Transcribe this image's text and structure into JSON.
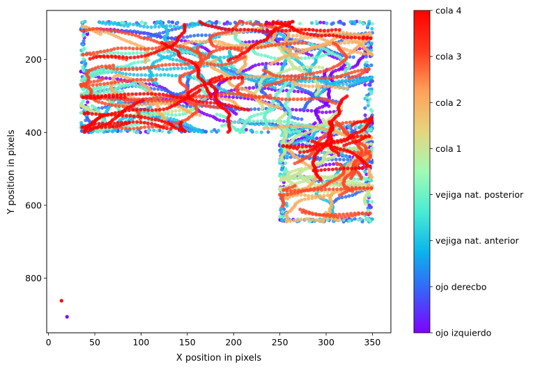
{
  "chart_data": {
    "type": "scatter",
    "xlabel": "X position in pixels",
    "ylabel": "Y position in pixels",
    "xlim": [
      -2,
      370
    ],
    "ylim": [
      950,
      65
    ],
    "y_inverted": true,
    "x_ticks": [
      0,
      50,
      100,
      150,
      200,
      250,
      300,
      350
    ],
    "y_ticks": [
      200,
      400,
      600,
      800
    ],
    "grid": false,
    "colormap": "rainbow",
    "colorbar": {
      "labels": [
        "ojo izquierdo",
        "ojo derecbo",
        "vejiga nat. anterior",
        "vejiga nat. posterior",
        "cola 1",
        "cola 2",
        "cola 3",
        "cola 4"
      ],
      "gradient_stops": [
        "#8000ff",
        "#3a5ef9",
        "#0bb3ec",
        "#48ecd4",
        "#a1fab4",
        "#e6d57e",
        "#ffa15a",
        "#ff3a1e",
        "#ff0000"
      ]
    },
    "trajectory_regions": [
      {
        "x_range": [
          35,
          350
        ],
        "y_range": [
          95,
          400
        ],
        "note": "upper block"
      },
      {
        "x_range": [
          250,
          350
        ],
        "y_range": [
          380,
          645
        ],
        "note": "lower-right block"
      }
    ],
    "outlier_points": [
      {
        "x": 14,
        "y": 862,
        "label_index": 7
      },
      {
        "x": 20,
        "y": 906,
        "label_index": 0
      }
    ]
  }
}
